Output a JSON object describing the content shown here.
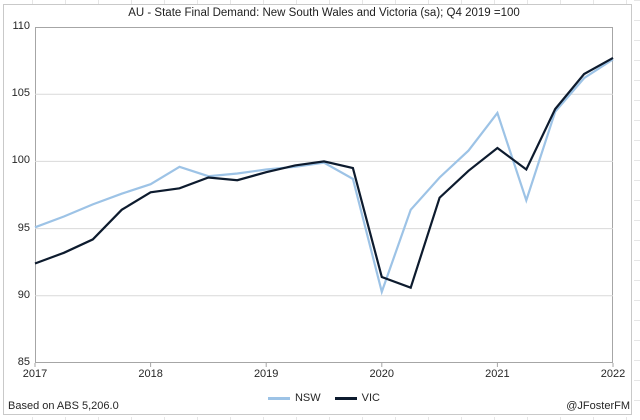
{
  "figure": {
    "title": "AU - State Final Demand: New South Wales and Victoria (sa); Q4 2019 =100",
    "source_note": "Based on ABS 5,206.0",
    "credit": "@JFosterFM"
  },
  "legend": [
    {
      "label": "NSW",
      "color": "#9dc3e6"
    },
    {
      "label": "VIC",
      "color": "#0d1b2e"
    }
  ],
  "chart_data": {
    "type": "line",
    "title": "AU - State Final Demand: New South Wales and Victoria (sa); Q4 2019 =100",
    "categories": [
      "2017 Q1",
      "2017 Q2",
      "2017 Q3",
      "2017 Q4",
      "2018 Q1",
      "2018 Q2",
      "2018 Q3",
      "2018 Q4",
      "2019 Q1",
      "2019 Q2",
      "2019 Q3",
      "2019 Q4",
      "2020 Q1",
      "2020 Q2",
      "2020 Q3",
      "2020 Q4",
      "2021 Q1",
      "2021 Q2",
      "2021 Q3",
      "2021 Q4",
      "2022 Q1"
    ],
    "series": [
      {
        "name": "NSW",
        "color": "#9dc3e6",
        "values": [
          95.1,
          95.9,
          96.8,
          97.6,
          98.3,
          99.6,
          98.9,
          99.1,
          99.4,
          99.6,
          99.9,
          98.7,
          90.3,
          96.4,
          98.8,
          100.8,
          103.6,
          97.1,
          103.7,
          106.2,
          107.6
        ]
      },
      {
        "name": "VIC",
        "color": "#0d1b2e",
        "values": [
          92.4,
          93.2,
          94.2,
          96.4,
          97.7,
          98.0,
          98.8,
          98.6,
          99.2,
          99.7,
          100.0,
          99.5,
          91.4,
          90.6,
          97.3,
          99.3,
          101.0,
          99.4,
          103.9,
          106.5,
          107.7
        ]
      }
    ],
    "ylim": [
      85,
      110
    ],
    "ytick_step": 5,
    "x_ticks": [
      {
        "label": "2017",
        "index": 0
      },
      {
        "label": "2018",
        "index": 4
      },
      {
        "label": "2019",
        "index": 8
      },
      {
        "label": "2020",
        "index": 12
      },
      {
        "label": "2021",
        "index": 16
      },
      {
        "label": "2022",
        "index": 20
      }
    ],
    "grid": "horizontal",
    "legend_position": "bottom",
    "gridline_color": "#d9d9d9",
    "plot_border_color": "#a6a6a6"
  }
}
